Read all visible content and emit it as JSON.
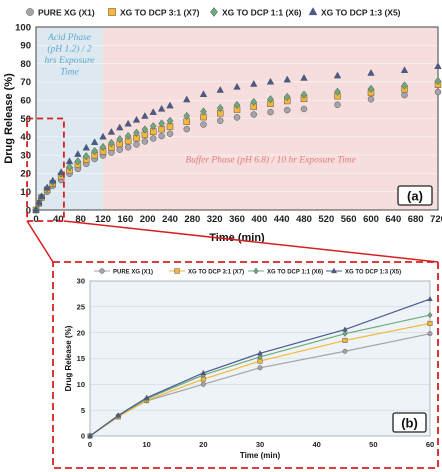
{
  "chart_data": [
    {
      "panel": "(a)",
      "type": "scatter",
      "xlabel": "Time (min)",
      "ylabel": "Drug Release (%)",
      "xlim": [
        0,
        720
      ],
      "ylim": [
        0,
        100
      ],
      "x_ticks": [
        0,
        40,
        80,
        120,
        160,
        200,
        240,
        280,
        320,
        360,
        400,
        440,
        480,
        520,
        560,
        600,
        640,
        680,
        720
      ],
      "y_ticks": [
        0,
        10,
        20,
        30,
        40,
        50,
        60,
        70,
        80,
        90,
        100
      ],
      "legend_position": "top",
      "annotations": {
        "acid_phase": "Acid Phase (pH 1.2) / 2 hrs Exposure Time",
        "buffer_phase": "Buffer Phase (pH 6.8) / 10 hr Exposure Time",
        "acid_range": [
          0,
          120
        ],
        "buffer_range": [
          120,
          720
        ]
      },
      "x": [
        0,
        5,
        10,
        20,
        30,
        45,
        60,
        75,
        90,
        105,
        120,
        135,
        150,
        165,
        180,
        195,
        210,
        225,
        240,
        270,
        300,
        330,
        360,
        390,
        420,
        450,
        480,
        540,
        600,
        660,
        720
      ],
      "series": [
        {
          "name": "PURE XG (X1)",
          "marker": "circle",
          "color": "#a6a3ab",
          "values": [
            0,
            3.9,
            6.8,
            10,
            13.2,
            16.4,
            19.8,
            22.5,
            25.2,
            27.9,
            29.8,
            31.4,
            33,
            34.3,
            35.8,
            37.5,
            39.1,
            40.4,
            41.7,
            44.2,
            46.7,
            48.8,
            50.6,
            52.2,
            53.5,
            54.6,
            55.2,
            57.5,
            60.5,
            62.8,
            64.5
          ]
        },
        {
          "name": "XG TO DCP 3:1 (X7)",
          "marker": "square",
          "color": "#f5b73a",
          "values": [
            0,
            3.7,
            6.9,
            11,
            14.5,
            18.5,
            21.8,
            24.8,
            27.5,
            30,
            32,
            34.2,
            36.1,
            37.7,
            39.3,
            41.1,
            42.8,
            44.2,
            45.6,
            48.3,
            50.8,
            52.9,
            54.9,
            56.5,
            58.1,
            59.6,
            60.8,
            62.2,
            64,
            66,
            68.5
          ]
        },
        {
          "name": "XG TO DCP 1:1 (X6)",
          "marker": "diamond",
          "color": "#6ea97c",
          "values": [
            0,
            3.9,
            7.2,
            11.8,
            15.3,
            19.8,
            23.4,
            26.6,
            29.4,
            32.2,
            34.4,
            36.6,
            38.7,
            40.4,
            42.2,
            44,
            45.8,
            47.3,
            48.7,
            51.4,
            53.8,
            55.7,
            57.4,
            59,
            60.5,
            61.8,
            63,
            64.6,
            66.2,
            68,
            70.5
          ]
        },
        {
          "name": "XG TO DCP 1:3 (X5)",
          "marker": "triangle",
          "color": "#4a5a8e",
          "values": [
            0,
            4,
            7.4,
            12.2,
            16,
            20.6,
            26.5,
            30.5,
            34,
            37,
            40,
            42.6,
            45,
            47.1,
            49.2,
            51.3,
            53.4,
            55.2,
            57,
            60.3,
            63.2,
            65.5,
            67.2,
            68.8,
            70,
            71.2,
            72.1,
            73.4,
            74.8,
            76.3,
            78.5
          ]
        }
      ]
    },
    {
      "panel": "(b)",
      "type": "line",
      "xlabel": "Time (min)",
      "ylabel": "Drug Release (%)",
      "xlim": [
        0,
        60
      ],
      "ylim": [
        0,
        30
      ],
      "x_ticks": [
        0,
        10,
        20,
        30,
        40,
        50,
        60
      ],
      "y_ticks": [
        0,
        5,
        10,
        15,
        20,
        25,
        30
      ],
      "legend_position": "top",
      "x": [
        0,
        5,
        10,
        20,
        30,
        45,
        60
      ],
      "series": [
        {
          "name": "PURE XG (X1)",
          "marker": "circle",
          "color": "#a6a3ab",
          "values": [
            0,
            3.9,
            6.8,
            10,
            13.2,
            16.4,
            19.8
          ]
        },
        {
          "name": "XG TO DCP 3:1 (X7)",
          "marker": "square",
          "color": "#f5b73a",
          "values": [
            0,
            3.7,
            6.9,
            11,
            14.5,
            18.5,
            21.8
          ]
        },
        {
          "name": "XG TO DCP 1:1 (X6)",
          "marker": "diamond",
          "color": "#6ea97c",
          "values": [
            0,
            3.9,
            7.2,
            11.8,
            15.3,
            19.8,
            23.4
          ]
        },
        {
          "name": "XG TO DCP 1:3 (X5)",
          "marker": "triangle",
          "color": "#4a5a8e",
          "values": [
            0,
            4,
            7.4,
            12.2,
            16,
            20.6,
            26.5
          ]
        }
      ]
    }
  ],
  "colors": {
    "acid_bg": "#dde8f1",
    "buffer_bg": "#f6dede",
    "zoom_box": "#d62020",
    "acid_text": "#5aaac8",
    "buffer_text": "#e07c7c",
    "panel_b_bg": "#eef3f8"
  }
}
